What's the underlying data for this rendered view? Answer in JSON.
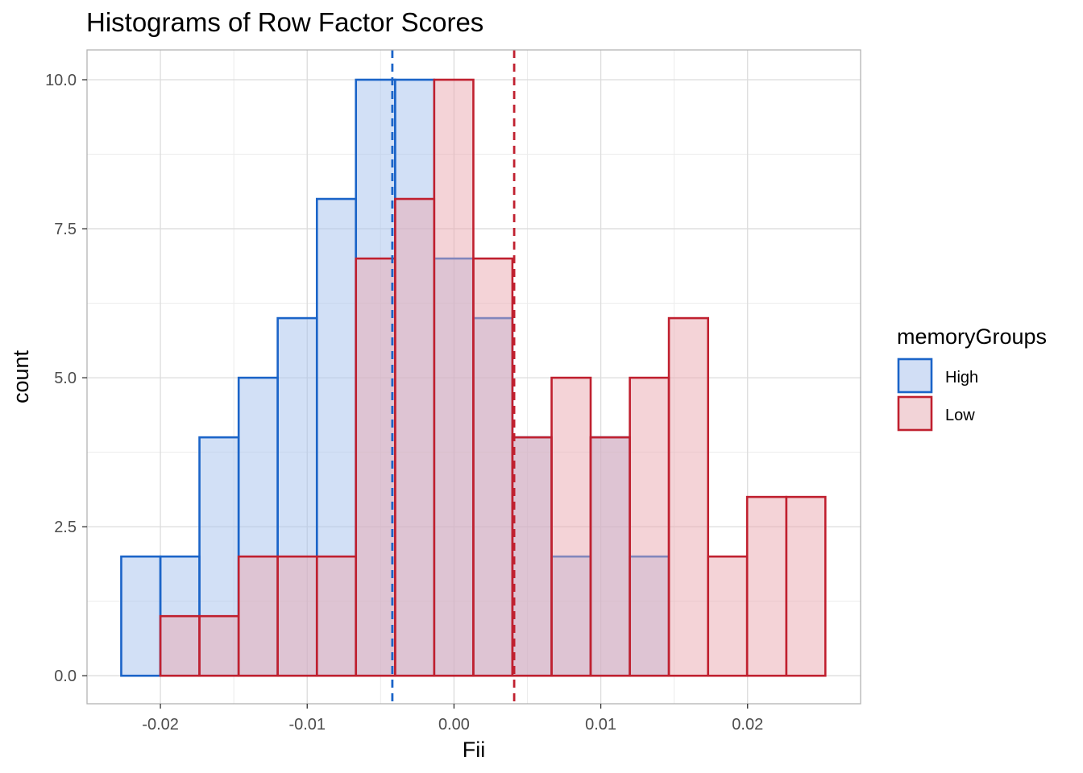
{
  "chart_data": {
    "type": "bar",
    "subtype": "overlapping histogram",
    "title": "Histograms of Row Factor Scores",
    "xlabel": "Fii",
    "ylabel": "count",
    "xlim": [
      -0.025,
      0.0277
    ],
    "ylim": [
      -0.47,
      10.5
    ],
    "x_ticks": [
      -0.02,
      -0.01,
      0.0,
      0.01,
      0.02
    ],
    "x_tick_labels": [
      "-0.02",
      "-0.01",
      "0.00",
      "0.01",
      "0.02"
    ],
    "y_ticks": [
      0,
      2.5,
      5,
      7.5,
      10
    ],
    "y_tick_labels": [
      "0.0",
      "2.5",
      "5.0",
      "7.5",
      "10.0"
    ],
    "grid": true,
    "legend": {
      "title": "memoryGroups",
      "position": "right",
      "entries": [
        "High",
        "Low"
      ]
    },
    "bin_edges": [
      -0.02267,
      -0.02,
      -0.01734,
      -0.01467,
      -0.01201,
      -0.00934,
      -0.00668,
      -0.00401,
      -0.00135,
      0.00132,
      0.00398,
      0.00665,
      0.00931,
      0.01198,
      0.01464,
      0.01731,
      0.01997,
      0.02264,
      0.0253
    ],
    "series": [
      {
        "name": "High",
        "values": [
          2,
          2,
          4,
          5,
          6,
          8,
          10,
          10,
          7,
          6,
          4,
          2,
          4,
          2,
          0,
          0,
          0,
          0
        ],
        "mean": -0.0042,
        "stroke": "#1b64c8",
        "fill": "#a6c1ee"
      },
      {
        "name": "Low",
        "values": [
          0,
          1,
          1,
          2,
          2,
          2,
          7,
          8,
          10,
          7,
          4,
          5,
          4,
          5,
          6,
          2,
          3,
          3
        ],
        "mean": 0.0041,
        "stroke": "#c0202f",
        "fill": "#e9a7b0"
      }
    ]
  }
}
